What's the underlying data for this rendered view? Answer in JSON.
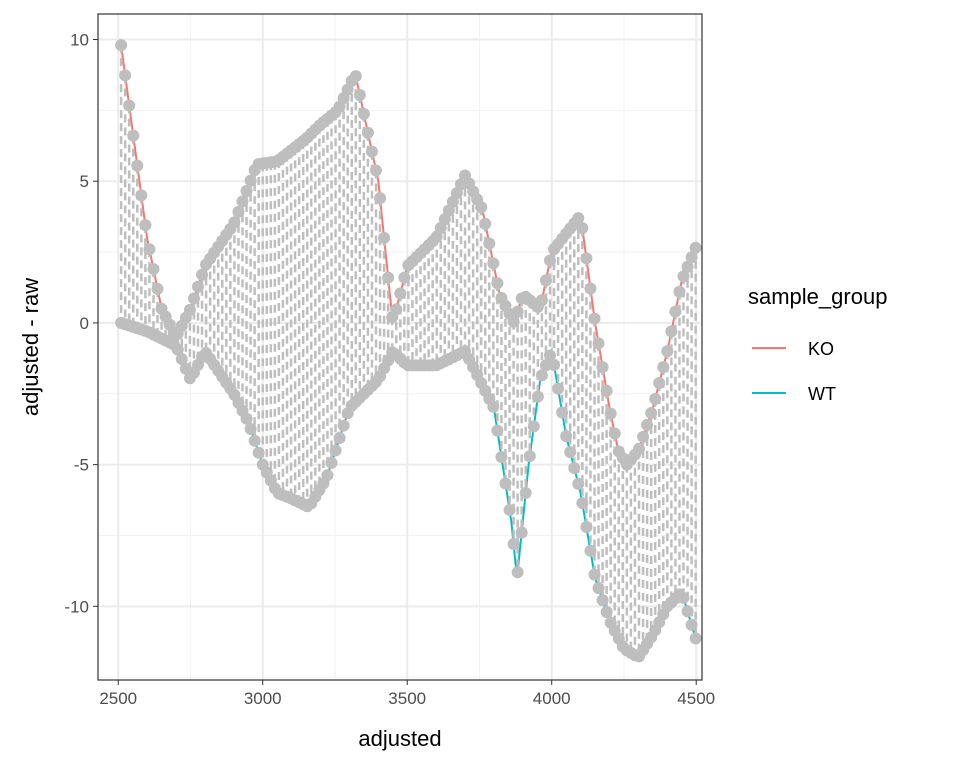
{
  "chart_data": {
    "type": "line",
    "xlabel": "adjusted",
    "ylabel": "adjusted - raw",
    "xlim": [
      2430,
      4520
    ],
    "ylim": [
      -12.6,
      10.9
    ],
    "xticks": [
      2500,
      3000,
      3500,
      4000,
      4500
    ],
    "yticks": [
      10,
      5,
      0,
      -5,
      -10
    ],
    "xtick_labels": [
      "2500",
      "3000",
      "3500",
      "4000",
      "4500"
    ],
    "ytick_labels": [
      "10",
      "5",
      "0",
      "-5",
      "-10"
    ],
    "grid": true,
    "legend": {
      "title": "sample_group",
      "position": "right"
    },
    "point_color": "#BEBEBE",
    "segment_style": "dashed",
    "series": [
      {
        "name": "KO",
        "color": "#F8766D",
        "x": [
          2510,
          2560,
          2600,
          2650,
          2700,
          2750,
          2800,
          2900,
          2980,
          3050,
          3150,
          3200,
          3260,
          3320,
          3400,
          3450,
          3500,
          3600,
          3700,
          3760,
          3820,
          3870,
          3900,
          3960,
          4000,
          4100,
          4150,
          4200,
          4230,
          4260,
          4300,
          4350,
          4400,
          4450,
          4500
        ],
        "y": [
          9.8,
          6,
          3,
          0.5,
          -0.5,
          0.5,
          2,
          3.5,
          5.6,
          5.7,
          6.5,
          7,
          7.5,
          8.8,
          5,
          0,
          2,
          3,
          5.2,
          4,
          1,
          0,
          1,
          0.5,
          2.5,
          3.8,
          0,
          -3,
          -4.5,
          -5,
          -4.5,
          -3,
          -1,
          1.5,
          2.7
        ]
      },
      {
        "name": "WT",
        "color": "#00BFC4",
        "x": [
          2510,
          2600,
          2700,
          2750,
          2800,
          2900,
          2950,
          3000,
          3050,
          3100,
          3160,
          3220,
          3300,
          3400,
          3450,
          3500,
          3600,
          3700,
          3800,
          3860,
          3880,
          3920,
          3960,
          4000,
          4050,
          4100,
          4150,
          4200,
          4250,
          4300,
          4350,
          4400,
          4450,
          4500
        ],
        "y": [
          0,
          -0.3,
          -0.8,
          -2,
          -1,
          -2.5,
          -3.5,
          -5,
          -6,
          -6.2,
          -6.5,
          -5.5,
          -3,
          -2,
          -1,
          -1.5,
          -1.5,
          -1,
          -3,
          -7,
          -9,
          -5,
          -2,
          -1,
          -4,
          -6,
          -9,
          -10.5,
          -11.5,
          -11.8,
          -11,
          -10,
          -9.5,
          -11.2
        ]
      }
    ]
  }
}
